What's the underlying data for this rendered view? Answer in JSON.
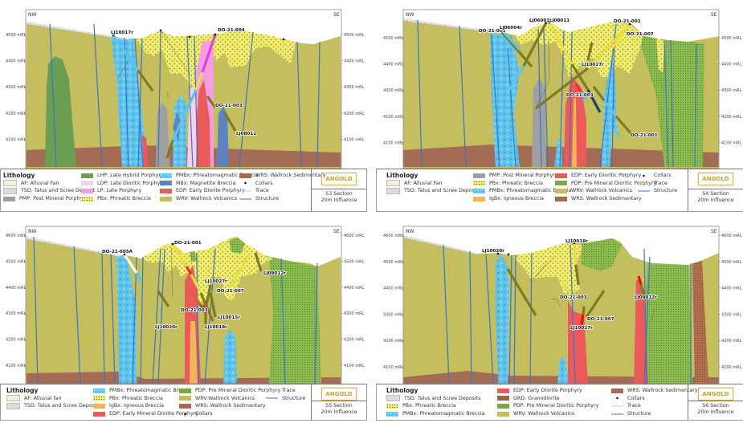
{
  "logo_text": "ANGOLD",
  "colors": {
    "structure": "#3a74c4",
    "trace": "#cccccc",
    "collar": "#000000"
  },
  "panels": [
    {
      "section": "S3 Section",
      "influence": "20m Influence",
      "dir_left": "NW",
      "dir_right": "SE",
      "ticks": [
        "4500 mRL",
        "4400 mRL",
        "4300 mRL",
        "4200 mRL",
        "4100 mRL"
      ],
      "drill_holes": [
        "LJ10017r",
        "DO-21-004",
        "DO-21-003",
        "LJ08011"
      ],
      "legend": {
        "title": "Lithology",
        "columns": [
          [
            {
              "label": "AF: Alluvial Fan",
              "swatch": "af"
            },
            {
              "label": "TSD: Talus and Scree Deposit",
              "swatch": "tsd"
            },
            {
              "label": "PMP: Post Mineral Porphyry",
              "swatch": "pmp"
            }
          ],
          [
            {
              "label": "LHP: Late Hybrid Porphyry",
              "swatch": "lhp"
            },
            {
              "label": "LDP: Late Dioritic Porphyry",
              "swatch": "ldp"
            },
            {
              "label": "LP: Late Porphyry",
              "swatch": "lp"
            },
            {
              "label": "PBx: Phreatic Breccia",
              "swatch": "pbx"
            }
          ],
          [
            {
              "label": "PMBx: Phreatomagmatic Breccia",
              "swatch": "pmbx"
            },
            {
              "label": "MBx: Magnetite Breccia",
              "swatch": "mbx"
            },
            {
              "label": "EDP: Early Diorite Porphyry",
              "swatch": "edp"
            },
            {
              "label": "WRV: Wallrock Volcanics",
              "swatch": "wrv"
            }
          ],
          [
            {
              "label": "WRS: Wallrock Sedimentary",
              "swatch": "wrs"
            },
            {
              "label": "Collars",
              "swatch": "collar"
            },
            {
              "label": "Trace",
              "swatch": "trace"
            },
            {
              "label": "Structure",
              "swatch": "structure"
            }
          ]
        ]
      }
    },
    {
      "section": "S4 Section",
      "influence": "20m Influence",
      "dir_left": "NW",
      "dir_right": "SE",
      "ticks": [
        "4500 mRL",
        "4400 mRL",
        "4300 mRL",
        "4200 mRL",
        "4100 mRL"
      ],
      "drill_holes": [
        "DO-21-005",
        "LJ06004r",
        "LJ06001r",
        "LJ08011",
        "DO-21-002",
        "DO-21-007",
        "LJ10027r",
        "DO-21-003",
        "DO-21-001"
      ],
      "legend": {
        "title": "Lithology",
        "columns": [
          [
            {
              "label": "AF: Alluvial Fan",
              "swatch": "af"
            },
            {
              "label": "TSD: Talus and Scree Deposits",
              "swatch": "tsd"
            }
          ],
          [
            {
              "label": "PMP: Post Mineral Porphyry",
              "swatch": "pmp"
            },
            {
              "label": "PBx: Phreatic Breccia",
              "swatch": "pbx"
            },
            {
              "label": "PMBx: Phreatomagmatic Breccia",
              "swatch": "pmbx"
            },
            {
              "label": "IgBx: Igneous Breccia",
              "swatch": "igbx"
            }
          ],
          [
            {
              "label": "EDP: Early Dioritic Porphyry",
              "swatch": "edp"
            },
            {
              "label": "PDP: Pre Mineral Dioritic Porphyry",
              "swatch": "pdp"
            },
            {
              "label": "WRV: Wallrock Volcanics",
              "swatch": "wrv"
            },
            {
              "label": "WRS: Wallrock Sedimentary",
              "swatch": "wrs"
            }
          ],
          [
            {
              "label": "Collars",
              "swatch": "collar"
            },
            {
              "label": "Trace",
              "swatch": "trace"
            },
            {
              "label": "Structure",
              "swatch": "structure"
            }
          ]
        ]
      }
    },
    {
      "section": "S5 Section",
      "influence": "20m Influence",
      "dir_left": "NW",
      "dir_right": "SE",
      "ticks": [
        "4600 mRL",
        "4500 mRL",
        "4400 mRL",
        "4300 mRL",
        "4200 mRL",
        "4100 mRL"
      ],
      "drill_holes": [
        "DO-21-005A",
        "DO-21-001",
        "LJ10027r",
        "DO-21-007",
        "LJ09012r",
        "DO-21-003",
        "LJ10020r",
        "LJ10018r",
        "LJ10015r"
      ],
      "legend": {
        "title": "Lithology",
        "columns": [
          [
            {
              "label": "AF: Alluvial fan",
              "swatch": "af"
            },
            {
              "label": "TSD: Talus and Scree Deposits",
              "swatch": "tsd"
            }
          ],
          [
            {
              "label": "PMBx: Phreatomagmatic Breccia",
              "swatch": "pmbx"
            },
            {
              "label": "PBx: Phreatic Breccia",
              "swatch": "pbx"
            },
            {
              "label": "IgBx: Igneous Breccia",
              "swatch": "igbx"
            },
            {
              "label": "EDP: Early Mineral Diorite Porphyry",
              "swatch": "edp"
            }
          ],
          [
            {
              "label": "PDP: Pre Mineral Dioritic Porphyry",
              "swatch": "pdp"
            },
            {
              "label": "WRV:Wallrock Volcanics",
              "swatch": "wrv"
            },
            {
              "label": "WRS: Wallrock Sedimentary",
              "swatch": "wrs"
            },
            {
              "label": "Collars",
              "swatch": "collar"
            }
          ],
          [
            {
              "label": "Trace",
              "swatch": "trace"
            },
            {
              "label": "Structure",
              "swatch": "structure"
            }
          ]
        ]
      }
    },
    {
      "section": "S6 Section",
      "influence": "20m Influence",
      "dir_left": "NW",
      "dir_right": "SE",
      "ticks": [
        "4600 mRL",
        "4500 mRL",
        "4400 mRL",
        "4300 mRL",
        "4200 mRL",
        "4100 mRL"
      ],
      "drill_holes": [
        "LJ10020r",
        "LJ10018r",
        "DO-21-003",
        "DO-21-007",
        "LJ10027r",
        "LJ09012r"
      ],
      "legend": {
        "title": "Lithology",
        "columns": [
          [
            {
              "label": "TSD: Talus and Scree Deposits",
              "swatch": "tsd"
            },
            {
              "label": "PBx: Phreatic Breccia",
              "swatch": "pbx"
            },
            {
              "label": "PMBx: Phreatomagmatic Breccia",
              "swatch": "pmbx"
            }
          ],
          [
            {
              "label": "EDP: Early Diorite Porphyry",
              "swatch": "edp"
            },
            {
              "label": "GRD: Granodiorite",
              "swatch": "grd"
            },
            {
              "label": "PDP: Pre Mineral Dioritic Porphyry",
              "swatch": "pdp"
            },
            {
              "label": "WRV: Wallrock Volcanics",
              "swatch": "wrv"
            }
          ],
          [
            {
              "label": "WRS: Wallrock Sedimentary",
              "swatch": "wrs"
            },
            {
              "label": "Collars",
              "swatch": "collar"
            },
            {
              "label": "Trace",
              "swatch": "trace"
            },
            {
              "label": "Structure",
              "swatch": "structure"
            }
          ]
        ]
      }
    }
  ]
}
